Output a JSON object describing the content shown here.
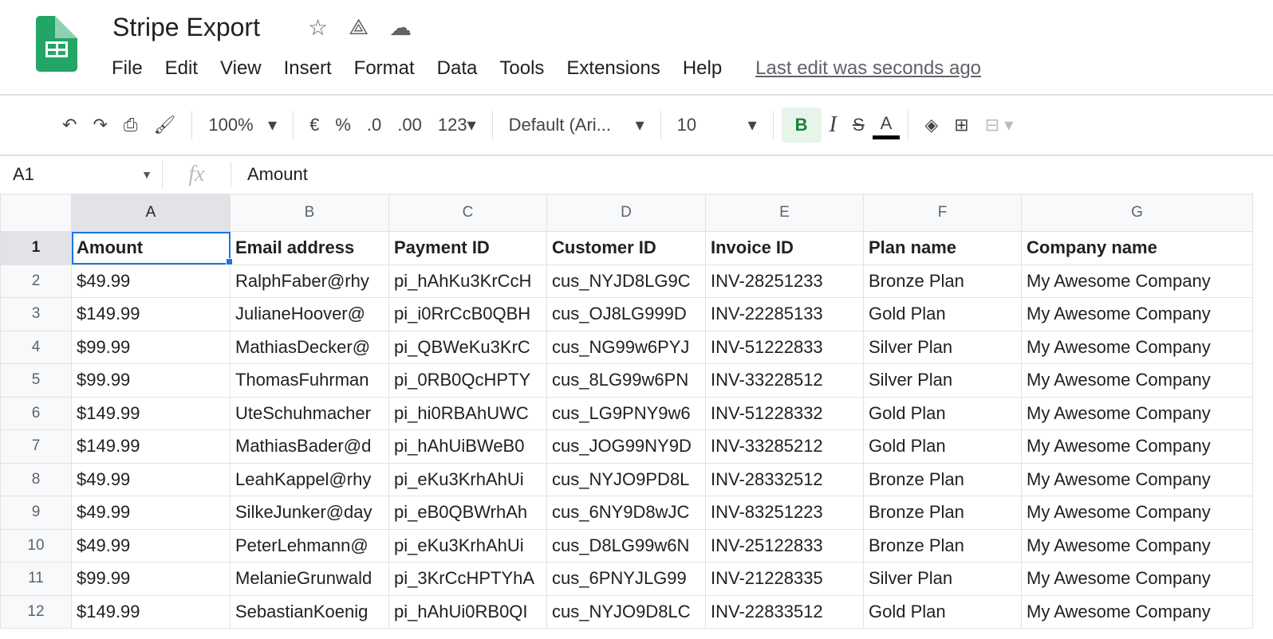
{
  "doc": {
    "title": "Stripe Export",
    "icons": [
      "star-icon",
      "move-to-drive-icon",
      "cloud-saved-icon"
    ]
  },
  "menu": [
    "File",
    "Edit",
    "View",
    "Insert",
    "Format",
    "Data",
    "Tools",
    "Extensions",
    "Help"
  ],
  "last_edit": "Last edit was seconds ago",
  "toolbar": {
    "zoom": "100%",
    "currency": "€",
    "percent": "%",
    "dec_less": ".0",
    "dec_more": ".00",
    "format": "123",
    "font": "Default (Ari...",
    "size": "10",
    "bold": "B",
    "italic": "I",
    "strike": "S",
    "text_color": "A",
    "text_color_value": "#000000"
  },
  "formula": {
    "cell": "A1",
    "fx": "fx",
    "value": "Amount"
  },
  "columns": [
    "A",
    "B",
    "C",
    "D",
    "E",
    "F",
    "G"
  ],
  "rows": [
    [
      "Amount",
      "Email address",
      "Payment ID",
      "Customer ID",
      "Invoice ID",
      "Plan name",
      "Company name"
    ],
    [
      "$49.99",
      "RalphFaber@rhy",
      "pi_hAhKu3KrCcH",
      "cus_NYJD8LG9C",
      "INV-28251233",
      "Bronze Plan",
      "My Awesome Company"
    ],
    [
      "$149.99",
      "JulianeHoover@",
      "pi_i0RrCcB0QBH",
      "cus_OJ8LG999D",
      "INV-22285133",
      "Gold Plan",
      "My Awesome Company"
    ],
    [
      "$99.99",
      "MathiasDecker@",
      "pi_QBWeKu3KrC",
      "cus_NG99w6PYJ",
      "INV-51222833",
      "Silver Plan",
      "My Awesome Company"
    ],
    [
      "$99.99",
      "ThomasFuhrman",
      "pi_0RB0QcHPTY",
      "cus_8LG99w6PN",
      "INV-33228512",
      "Silver Plan",
      "My Awesome Company"
    ],
    [
      "$149.99",
      "UteSchuhmacher",
      "pi_hi0RBAhUWC",
      "cus_LG9PNY9w6",
      "INV-51228332",
      "Gold Plan",
      "My Awesome Company"
    ],
    [
      "$149.99",
      "MathiasBader@d",
      "pi_hAhUiBWeB0",
      "cus_JOG99NY9D",
      "INV-33285212",
      "Gold Plan",
      "My Awesome Company"
    ],
    [
      "$49.99",
      "LeahKappel@rhy",
      "pi_eKu3KrhAhUi",
      "cus_NYJO9PD8L",
      "INV-28332512",
      "Bronze Plan",
      "My Awesome Company"
    ],
    [
      "$49.99",
      "SilkeJunker@day",
      "pi_eB0QBWrhAh",
      "cus_6NY9D8wJC",
      "INV-83251223",
      "Bronze Plan",
      "My Awesome Company"
    ],
    [
      "$49.99",
      "PeterLehmann@",
      "pi_eKu3KrhAhUi",
      "cus_D8LG99w6N",
      "INV-25122833",
      "Bronze Plan",
      "My Awesome Company"
    ],
    [
      "$99.99",
      "MelanieGrunwald",
      "pi_3KrCcHPTYhA",
      "cus_6PNYJLG99",
      "INV-21228335",
      "Silver Plan",
      "My Awesome Company"
    ],
    [
      "$149.99",
      "SebastianKoenig",
      "pi_hAhUi0RB0QI",
      "cus_NYJO9D8LC",
      "INV-22833512",
      "Gold Plan",
      "My Awesome Company"
    ]
  ]
}
